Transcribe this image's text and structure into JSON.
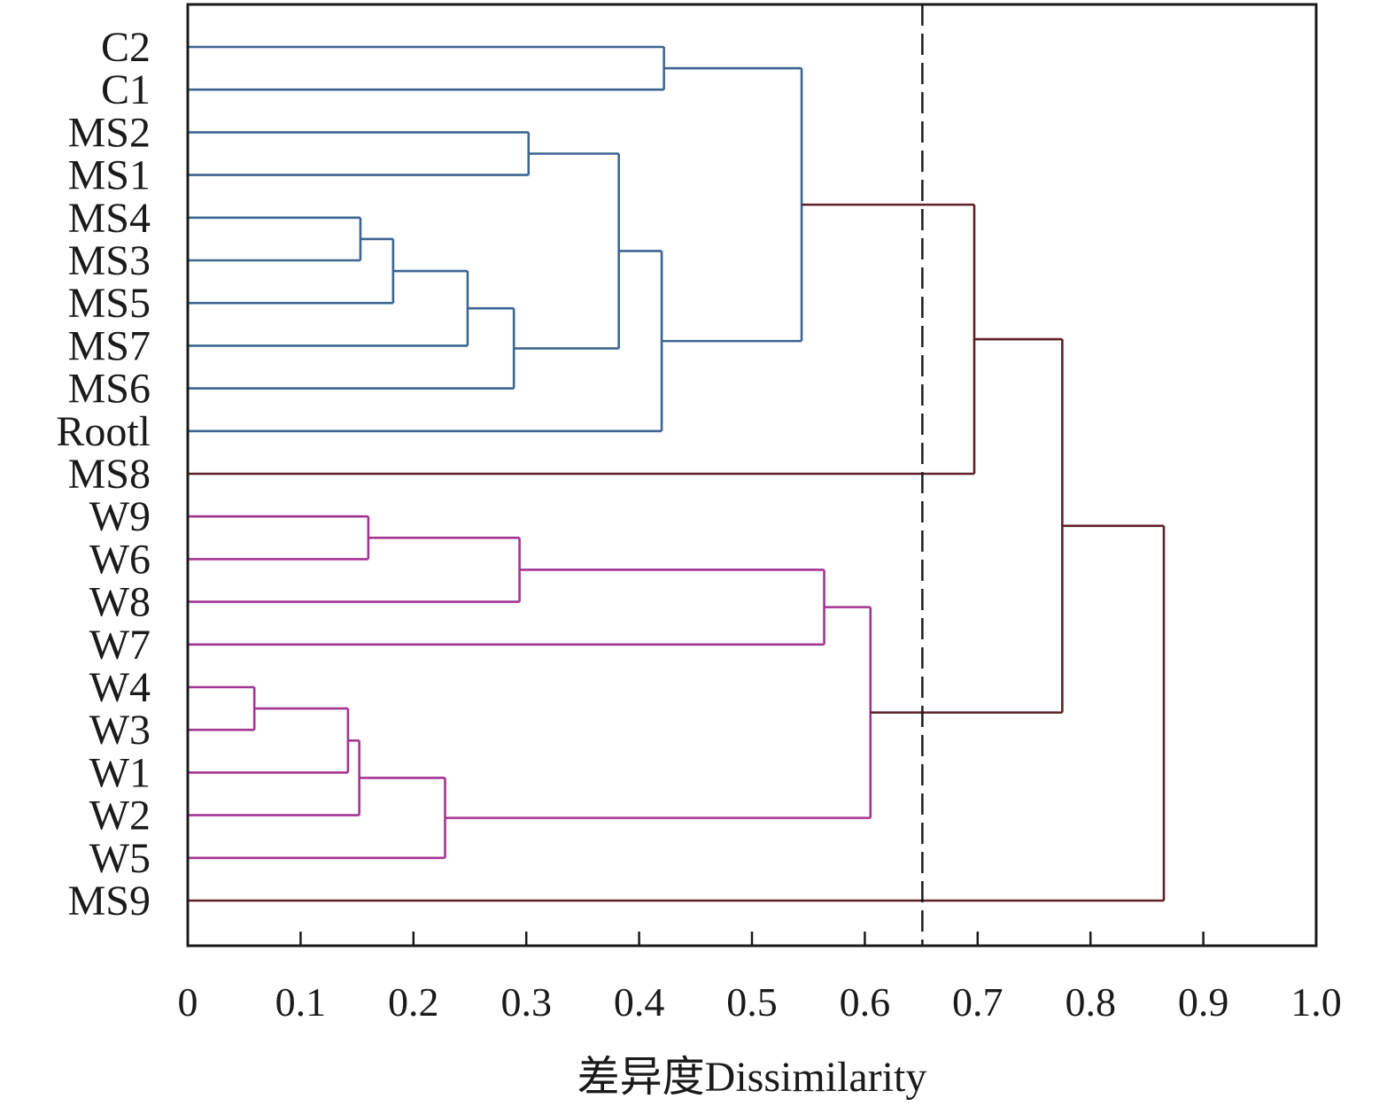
{
  "chart_data": {
    "type": "dendrogram",
    "title": "",
    "xlabel": "差异度Dissimilarity",
    "ylabel": "",
    "xlim": [
      0,
      1.0
    ],
    "xticks": [
      "0",
      "0.1",
      "0.2",
      "0.3",
      "0.4",
      "0.5",
      "0.6",
      "0.7",
      "0.8",
      "0.9",
      "1.0"
    ],
    "xtick_values": [
      0,
      0.1,
      0.2,
      0.3,
      0.4,
      0.5,
      0.6,
      0.7,
      0.8,
      0.9,
      1.0
    ],
    "grid": false,
    "leaves": [
      "C2",
      "C1",
      "MS2",
      "MS1",
      "MS4",
      "MS3",
      "MS5",
      "MS7",
      "MS6",
      "Rootl",
      "MS8",
      "W9",
      "W6",
      "W8",
      "W7",
      "W4",
      "W3",
      "W1",
      "W2",
      "W5",
      "MS9"
    ],
    "cut_threshold": 0.651,
    "colors": {
      "cluster_blue": "#3d6591",
      "cluster_magenta": "#a23592",
      "link_root": "#5e1f25",
      "axis": "#1a1a1a",
      "threshold": "#1a1a1a"
    },
    "merges": [
      {
        "id": "m1",
        "left": "C2",
        "right": "C1",
        "height": 0.422,
        "color": "cluster_blue"
      },
      {
        "id": "m2",
        "left": "MS2",
        "right": "MS1",
        "height": 0.302,
        "color": "cluster_blue"
      },
      {
        "id": "m3",
        "left": "MS4",
        "right": "MS3",
        "height": 0.153,
        "color": "cluster_blue"
      },
      {
        "id": "m4",
        "left": "m3",
        "right": "MS5",
        "height": 0.182,
        "color": "cluster_blue"
      },
      {
        "id": "m5",
        "left": "m4",
        "right": "MS7",
        "height": 0.248,
        "color": "cluster_blue"
      },
      {
        "id": "m6",
        "left": "m5",
        "right": "MS6",
        "height": 0.289,
        "color": "cluster_blue"
      },
      {
        "id": "m7",
        "left": "m2",
        "right": "m6",
        "height": 0.382,
        "color": "cluster_blue"
      },
      {
        "id": "m8",
        "left": "m7",
        "right": "Rootl",
        "height": 0.42,
        "color": "cluster_blue"
      },
      {
        "id": "m9",
        "left": "m1",
        "right": "m8",
        "height": 0.544,
        "color": "cluster_blue"
      },
      {
        "id": "m10",
        "left": "m9",
        "right": "MS8",
        "height": 0.697,
        "color": "link_root"
      },
      {
        "id": "m11",
        "left": "W9",
        "right": "W6",
        "height": 0.16,
        "color": "cluster_magenta"
      },
      {
        "id": "m12",
        "left": "m11",
        "right": "W8",
        "height": 0.294,
        "color": "cluster_magenta"
      },
      {
        "id": "m13",
        "left": "m12",
        "right": "W7",
        "height": 0.564,
        "color": "cluster_magenta"
      },
      {
        "id": "m14",
        "left": "W4",
        "right": "W3",
        "height": 0.059,
        "color": "cluster_magenta"
      },
      {
        "id": "m15",
        "left": "m14",
        "right": "W1",
        "height": 0.142,
        "color": "cluster_magenta"
      },
      {
        "id": "m16",
        "left": "m15",
        "right": "W2",
        "height": 0.152,
        "color": "cluster_magenta"
      },
      {
        "id": "m17",
        "left": "m16",
        "right": "W5",
        "height": 0.228,
        "color": "cluster_magenta"
      },
      {
        "id": "m18",
        "left": "m13",
        "right": "m17",
        "height": 0.605,
        "color": "cluster_magenta"
      },
      {
        "id": "m19",
        "left": "m10",
        "right": "m18",
        "height": 0.775,
        "color": "link_root"
      },
      {
        "id": "m20",
        "left": "m19",
        "right": "MS9",
        "height": 0.865,
        "color": "link_root"
      }
    ],
    "leaf_colors": {
      "MS8": "link_root",
      "MS9": "link_root"
    }
  }
}
